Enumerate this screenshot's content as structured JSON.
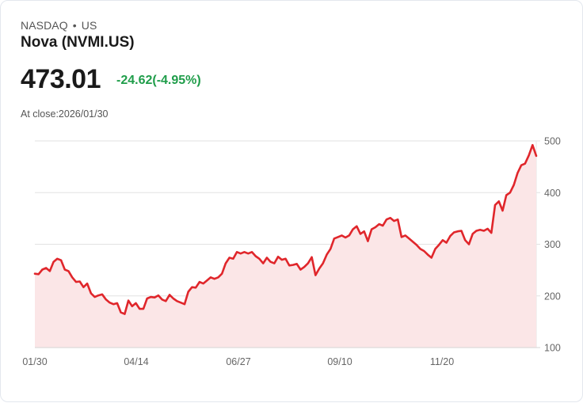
{
  "header": {
    "exchange": "NASDAQ",
    "separator": "•",
    "market": "US",
    "title": "Nova (NVMI.US)",
    "price": "473.01",
    "change": "-24.62(-4.95%)",
    "close_label": "At close:2026/01/30"
  },
  "colors": {
    "line": "#e0262b",
    "fill": "#fbe6e7",
    "change": "#1f9d4a",
    "grid": "#e2e2e2"
  },
  "chart_data": {
    "type": "area",
    "title": "Nova (NVMI.US)",
    "xlabel": "",
    "ylabel": "",
    "x_tick_labels": [
      "01/30",
      "04/14",
      "06/27",
      "09/10",
      "11/20"
    ],
    "y_tick_labels": [
      "500",
      "400",
      "300",
      "200",
      "100"
    ],
    "ylim": [
      100,
      500
    ],
    "grid": true,
    "legend": "none",
    "x_range": [
      "2025/01/30",
      "2026/01/30"
    ],
    "series": [
      {
        "name": "NVMI.US close",
        "values": [
          243,
          242,
          251,
          254,
          248,
          266,
          272,
          269,
          251,
          248,
          236,
          227,
          228,
          217,
          224,
          205,
          198,
          201,
          203,
          193,
          187,
          184,
          186,
          168,
          165,
          191,
          180,
          186,
          175,
          175,
          195,
          198,
          197,
          201,
          193,
          190,
          202,
          195,
          190,
          187,
          184,
          208,
          217,
          216,
          227,
          224,
          230,
          236,
          233,
          236,
          243,
          263,
          274,
          272,
          285,
          282,
          285,
          282,
          285,
          277,
          272,
          263,
          274,
          266,
          263,
          276,
          270,
          272,
          259,
          260,
          262,
          251,
          256,
          263,
          275,
          240,
          253,
          263,
          280,
          291,
          311,
          314,
          317,
          313,
          317,
          329,
          335,
          320,
          325,
          306,
          329,
          333,
          339,
          336,
          348,
          351,
          345,
          348,
          314,
          317,
          311,
          305,
          299,
          291,
          287,
          280,
          274,
          291,
          299,
          308,
          303,
          316,
          323,
          325,
          326,
          308,
          300,
          320,
          326,
          328,
          326,
          330,
          322,
          376,
          383,
          365,
          395,
          400,
          415,
          438,
          453,
          456,
          472,
          492,
          471
        ]
      }
    ]
  }
}
